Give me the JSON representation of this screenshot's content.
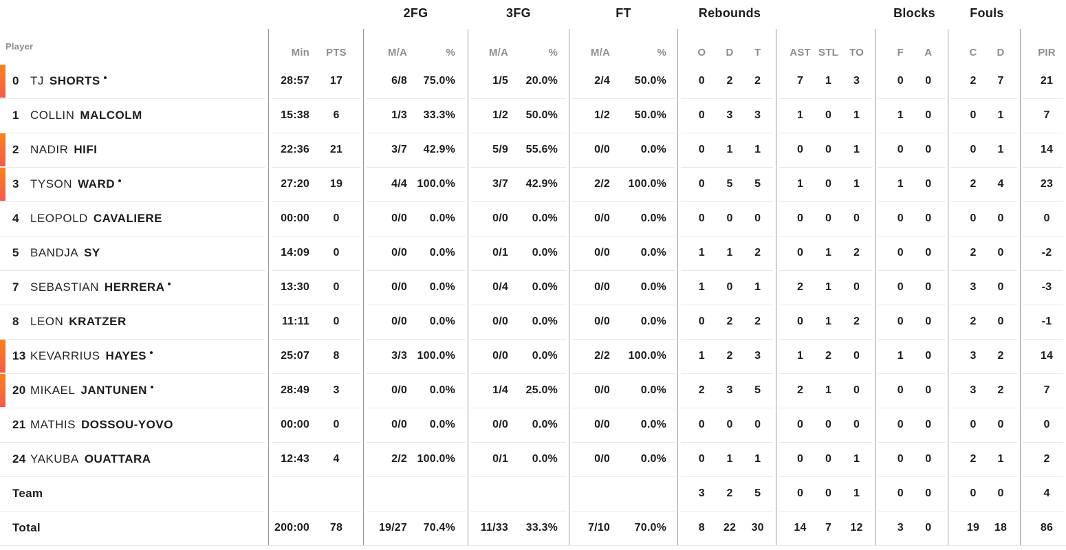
{
  "colors": {
    "starter_bar_top": "#f8831c",
    "starter_bar_bottom": "#f45b4d",
    "text": "#1c1c1c",
    "muted_header": "#8d8d8d",
    "vertical_line": "#9c9c9c",
    "row_separator": "#e8e8e8"
  },
  "table": {
    "player_header": "Player",
    "groups": [
      {
        "title": "",
        "cols": [
          "Min",
          "PTS"
        ]
      },
      {
        "title": "2FG",
        "cols": [
          "M/A",
          "%"
        ]
      },
      {
        "title": "3FG",
        "cols": [
          "M/A",
          "%"
        ]
      },
      {
        "title": "FT",
        "cols": [
          "M/A",
          "%"
        ]
      },
      {
        "title": "Rebounds",
        "cols": [
          "O",
          "D",
          "T"
        ]
      },
      {
        "title": "",
        "cols": [
          "AST",
          "STL",
          "TO"
        ]
      },
      {
        "title": "Blocks",
        "cols": [
          "F",
          "A"
        ]
      },
      {
        "title": "Fouls",
        "cols": [
          "C",
          "D"
        ]
      },
      {
        "title": "",
        "cols": [
          "PIR"
        ]
      }
    ],
    "rows": [
      {
        "number": "0",
        "first": "TJ",
        "last": "SHORTS",
        "on_court": true,
        "starter_dot": true,
        "cells": [
          "28:57",
          "17",
          "6/8",
          "75.0%",
          "1/5",
          "20.0%",
          "2/4",
          "50.0%",
          "0",
          "2",
          "2",
          "7",
          "1",
          "3",
          "0",
          "0",
          "2",
          "7",
          "21"
        ]
      },
      {
        "number": "1",
        "first": "COLLIN",
        "last": "MALCOLM",
        "on_court": false,
        "starter_dot": false,
        "cells": [
          "15:38",
          "6",
          "1/3",
          "33.3%",
          "1/2",
          "50.0%",
          "1/2",
          "50.0%",
          "0",
          "3",
          "3",
          "1",
          "0",
          "1",
          "1",
          "0",
          "0",
          "1",
          "7"
        ]
      },
      {
        "number": "2",
        "first": "NADIR",
        "last": "HIFI",
        "on_court": true,
        "starter_dot": false,
        "cells": [
          "22:36",
          "21",
          "3/7",
          "42.9%",
          "5/9",
          "55.6%",
          "0/0",
          "0.0%",
          "0",
          "1",
          "1",
          "0",
          "0",
          "1",
          "0",
          "0",
          "0",
          "1",
          "14"
        ]
      },
      {
        "number": "3",
        "first": "TYSON",
        "last": "WARD",
        "on_court": true,
        "starter_dot": true,
        "cells": [
          "27:20",
          "19",
          "4/4",
          "100.0%",
          "3/7",
          "42.9%",
          "2/2",
          "100.0%",
          "0",
          "5",
          "5",
          "1",
          "0",
          "1",
          "1",
          "0",
          "2",
          "4",
          "23"
        ]
      },
      {
        "number": "4",
        "first": "LEOPOLD",
        "last": "CAVALIERE",
        "on_court": false,
        "starter_dot": false,
        "cells": [
          "00:00",
          "0",
          "0/0",
          "0.0%",
          "0/0",
          "0.0%",
          "0/0",
          "0.0%",
          "0",
          "0",
          "0",
          "0",
          "0",
          "0",
          "0",
          "0",
          "0",
          "0",
          "0"
        ]
      },
      {
        "number": "5",
        "first": "BANDJA",
        "last": "SY",
        "on_court": false,
        "starter_dot": false,
        "cells": [
          "14:09",
          "0",
          "0/0",
          "0.0%",
          "0/1",
          "0.0%",
          "0/0",
          "0.0%",
          "1",
          "1",
          "2",
          "0",
          "1",
          "2",
          "0",
          "0",
          "2",
          "0",
          "-2"
        ]
      },
      {
        "number": "7",
        "first": "SEBASTIAN",
        "last": "HERRERA",
        "on_court": false,
        "starter_dot": true,
        "cells": [
          "13:30",
          "0",
          "0/0",
          "0.0%",
          "0/4",
          "0.0%",
          "0/0",
          "0.0%",
          "1",
          "0",
          "1",
          "2",
          "1",
          "0",
          "0",
          "0",
          "3",
          "0",
          "-3"
        ]
      },
      {
        "number": "8",
        "first": "LEON",
        "last": "KRATZER",
        "on_court": false,
        "starter_dot": false,
        "cells": [
          "11:11",
          "0",
          "0/0",
          "0.0%",
          "0/0",
          "0.0%",
          "0/0",
          "0.0%",
          "0",
          "2",
          "2",
          "0",
          "1",
          "2",
          "0",
          "0",
          "2",
          "0",
          "-1"
        ]
      },
      {
        "number": "13",
        "first": "KEVARRIUS",
        "last": "HAYES",
        "on_court": true,
        "starter_dot": true,
        "cells": [
          "25:07",
          "8",
          "3/3",
          "100.0%",
          "0/0",
          "0.0%",
          "2/2",
          "100.0%",
          "1",
          "2",
          "3",
          "1",
          "2",
          "0",
          "1",
          "0",
          "3",
          "2",
          "14"
        ]
      },
      {
        "number": "20",
        "first": "MIKAEL",
        "last": "JANTUNEN",
        "on_court": true,
        "starter_dot": true,
        "cells": [
          "28:49",
          "3",
          "0/0",
          "0.0%",
          "1/4",
          "25.0%",
          "0/0",
          "0.0%",
          "2",
          "3",
          "5",
          "2",
          "1",
          "0",
          "0",
          "0",
          "3",
          "2",
          "7"
        ]
      },
      {
        "number": "21",
        "first": "MATHIS",
        "last": "DOSSOU-YOVO",
        "on_court": false,
        "starter_dot": false,
        "cells": [
          "00:00",
          "0",
          "0/0",
          "0.0%",
          "0/0",
          "0.0%",
          "0/0",
          "0.0%",
          "0",
          "0",
          "0",
          "0",
          "0",
          "0",
          "0",
          "0",
          "0",
          "0",
          "0"
        ]
      },
      {
        "number": "24",
        "first": "YAKUBA",
        "last": "OUATTARA",
        "on_court": false,
        "starter_dot": false,
        "cells": [
          "12:43",
          "4",
          "2/2",
          "100.0%",
          "0/1",
          "0.0%",
          "0/0",
          "0.0%",
          "0",
          "1",
          "1",
          "0",
          "0",
          "1",
          "0",
          "0",
          "2",
          "1",
          "2"
        ]
      }
    ],
    "summary_rows": [
      {
        "label": "Team",
        "cells": [
          "",
          "",
          "",
          "",
          "",
          "",
          "",
          "",
          "3",
          "2",
          "5",
          "0",
          "0",
          "1",
          "0",
          "0",
          "0",
          "0",
          "4"
        ]
      },
      {
        "label": "Total",
        "cells": [
          "200:00",
          "78",
          "19/27",
          "70.4%",
          "11/33",
          "33.3%",
          "7/10",
          "70.0%",
          "8",
          "22",
          "30",
          "14",
          "7",
          "12",
          "3",
          "0",
          "19",
          "18",
          "86"
        ]
      }
    ]
  }
}
